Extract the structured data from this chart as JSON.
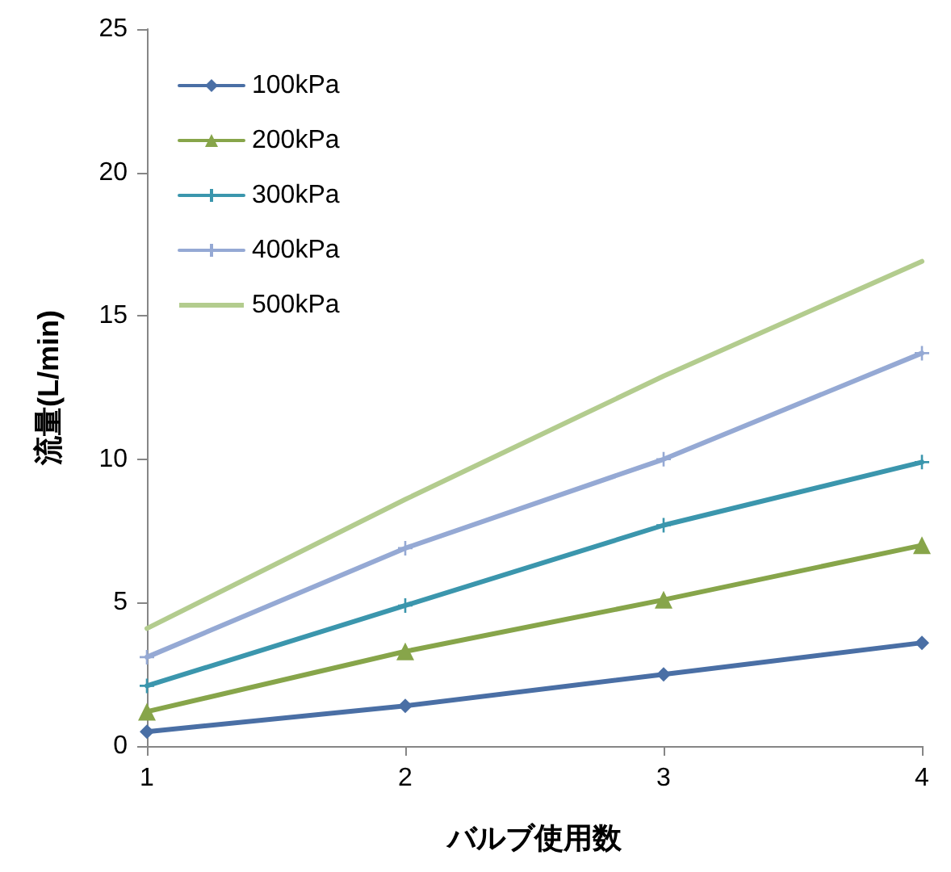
{
  "chart_data": {
    "type": "line",
    "xlabel": "バルブ使用数",
    "ylabel": "流量(L/min)",
    "x": [
      1,
      2,
      3,
      4
    ],
    "xlim": [
      1,
      4
    ],
    "xticks": [
      1,
      2,
      3,
      4
    ],
    "ylim": [
      0,
      25
    ],
    "yticks": [
      0,
      5,
      10,
      15,
      20,
      25
    ],
    "grid": false,
    "legend": "top left",
    "line_style": "solid",
    "series": [
      {
        "name": "100kPa",
        "color": "#4a6fa5",
        "marker": "diamond",
        "values": [
          0.5,
          1.4,
          2.5,
          3.6
        ]
      },
      {
        "name": "200kPa",
        "color": "#87a54a",
        "marker": "triangle",
        "values": [
          1.2,
          3.3,
          5.1,
          7.0
        ]
      },
      {
        "name": "300kPa",
        "color": "#3b96ad",
        "marker": "cross",
        "values": [
          2.1,
          4.9,
          7.7,
          9.9
        ]
      },
      {
        "name": "400kPa",
        "color": "#95a9d4",
        "marker": "cross",
        "values": [
          3.1,
          6.9,
          10.0,
          13.7
        ]
      },
      {
        "name": "500kPa",
        "color": "#b3cc8e",
        "marker": "none",
        "values": [
          4.1,
          8.6,
          12.9,
          16.9
        ]
      }
    ]
  }
}
